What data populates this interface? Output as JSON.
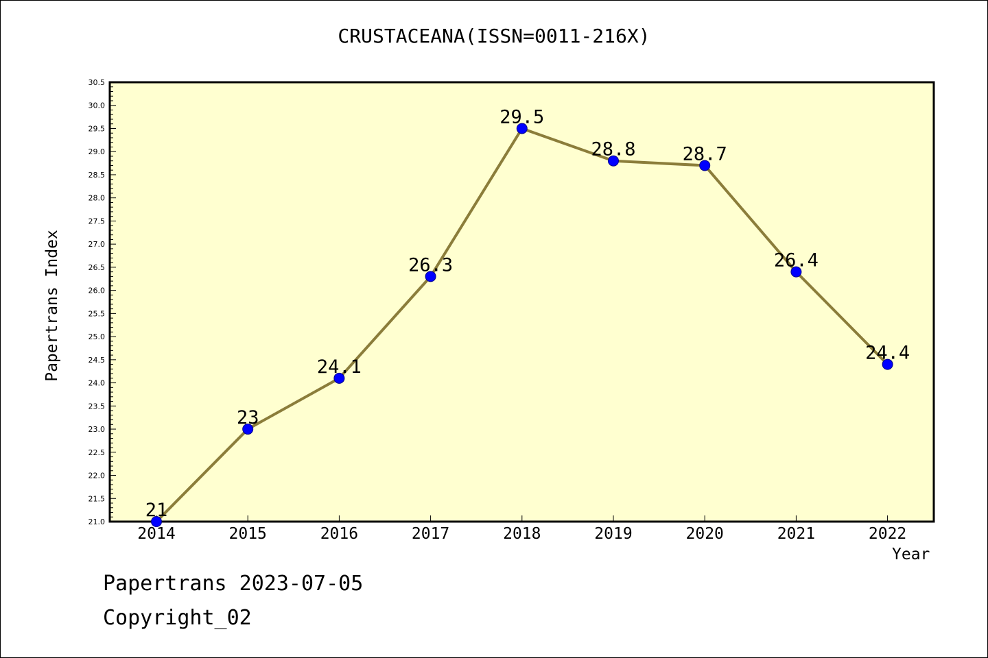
{
  "chart_data": {
    "type": "line",
    "title": "CRUSTACEANA(ISSN=0011-216X)",
    "xlabel": "Year",
    "ylabel": "Papertrans Index",
    "categories": [
      "2014",
      "2015",
      "2016",
      "2017",
      "2018",
      "2019",
      "2020",
      "2021",
      "2022"
    ],
    "series": [
      {
        "values": [
          21,
          23,
          24.1,
          26.3,
          29.5,
          28.8,
          28.7,
          26.4,
          24.4
        ],
        "labels": [
          "21",
          "23",
          "24.1",
          "26.3",
          "29.5",
          "28.8",
          "28.7",
          "26.4",
          "24.4"
        ]
      }
    ],
    "ylim": [
      21.0,
      30.5
    ],
    "yticks": [
      "21.0",
      "21.5",
      "22.0",
      "22.5",
      "23.0",
      "23.5",
      "24.0",
      "24.5",
      "25.0",
      "25.5",
      "26.0",
      "26.5",
      "27.0",
      "27.5",
      "28.0",
      "28.5",
      "29.0",
      "29.5",
      "30.0",
      "30.5"
    ],
    "grid": false,
    "colors": {
      "plot_background": "#ffffd0",
      "line": "#8b7d3a",
      "marker": "#0000ff",
      "marker_edge": "#00008b"
    }
  },
  "footer": {
    "line1": "Papertrans 2023-07-05",
    "line2": "Copyright_02"
  }
}
